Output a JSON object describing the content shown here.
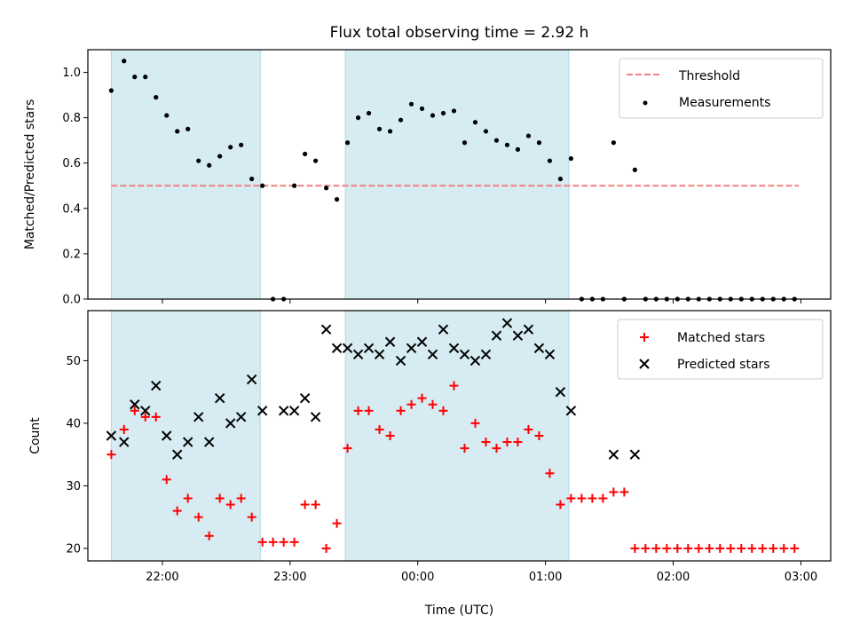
{
  "chart_data": [
    {
      "type": "scatter",
      "title": "Flux total observing time = 2.92 h",
      "ylabel": "Matched/Predicted stars",
      "xlabel": "",
      "xlim": [
        "21:35",
        "23:59+3:12"
      ],
      "ylim": [
        0,
        1.1
      ],
      "yticks": [
        0.0,
        0.2,
        0.4,
        0.6,
        0.8,
        1.0
      ],
      "ytick_labels": [
        "0.0",
        "0.2",
        "0.4",
        "0.6",
        "0.8",
        "1.0"
      ],
      "shaded_intervals": [
        [
          "21:36",
          "22:46"
        ],
        [
          "23:26",
          "01:11"
        ]
      ],
      "threshold": {
        "value": 0.5,
        "x_start": "21:36",
        "x_end": "02:59",
        "color": "#f08080"
      },
      "legend_position": "top-right",
      "legend": [
        "Threshold",
        "Measurements"
      ],
      "series": [
        {
          "name": "Measurements",
          "color": "#000000",
          "x": [
            "21:36",
            "21:42",
            "21:47",
            "21:52",
            "21:57",
            "22:02",
            "22:07",
            "22:12",
            "22:17",
            "22:22",
            "22:27",
            "22:32",
            "22:37",
            "22:42",
            "22:47",
            "22:52",
            "22:57",
            "23:02",
            "23:07",
            "23:12",
            "23:17",
            "23:22",
            "23:27",
            "23:32",
            "23:37",
            "23:42",
            "23:47",
            "23:52",
            "23:57",
            "00:02",
            "00:07",
            "00:12",
            "00:17",
            "00:22",
            "00:27",
            "00:32",
            "00:37",
            "00:42",
            "00:47",
            "00:52",
            "00:57",
            "01:02",
            "01:07",
            "01:12",
            "01:17",
            "01:22",
            "01:27",
            "01:32",
            "01:37",
            "01:42",
            "01:47",
            "01:52",
            "01:57",
            "02:02",
            "02:07",
            "02:12",
            "02:17",
            "02:22",
            "02:27",
            "02:32",
            "02:37",
            "02:42",
            "02:47",
            "02:52",
            "02:57"
          ],
          "values": [
            0.92,
            1.05,
            0.98,
            0.98,
            0.89,
            0.81,
            0.74,
            0.75,
            0.61,
            0.59,
            0.63,
            0.67,
            0.68,
            0.53,
            0.5,
            0.0,
            0.0,
            0.5,
            0.64,
            0.61,
            0.49,
            0.44,
            0.69,
            0.8,
            0.82,
            0.75,
            0.74,
            0.79,
            0.86,
            0.84,
            0.81,
            0.82,
            0.83,
            0.69,
            0.78,
            0.74,
            0.7,
            0.68,
            0.66,
            0.72,
            0.69,
            0.61,
            0.53,
            0.62,
            0.0,
            0.0,
            0.0,
            0.69,
            0.0,
            0.57,
            0.0,
            0.0,
            0.0,
            0.0,
            0.0,
            0.0,
            0.0,
            0.0,
            0.0,
            0.0,
            0.0,
            0.0,
            0.0,
            0.0,
            0.0
          ]
        }
      ]
    },
    {
      "type": "scatter",
      "title": "",
      "xlabel": "Time (UTC)",
      "ylabel": "Count",
      "ylim": [
        18,
        58
      ],
      "yticks": [
        20,
        30,
        40,
        50
      ],
      "ytick_labels": [
        "20",
        "30",
        "40",
        "50"
      ],
      "xtick_labels": [
        "22:00",
        "23:00",
        "00:00",
        "01:00",
        "02:00",
        "03:00"
      ],
      "shaded_intervals": [
        [
          "21:36",
          "22:46"
        ],
        [
          "23:26",
          "01:11"
        ]
      ],
      "legend_position": "top-right",
      "legend": [
        "Matched stars",
        "Predicted stars"
      ],
      "series": [
        {
          "name": "Matched stars",
          "color": "#ff0000",
          "marker": "plus",
          "x": [
            "21:36",
            "21:42",
            "21:47",
            "21:52",
            "21:57",
            "22:02",
            "22:07",
            "22:12",
            "22:17",
            "22:22",
            "22:27",
            "22:32",
            "22:37",
            "22:42",
            "22:47",
            "22:52",
            "22:57",
            "23:02",
            "23:07",
            "23:12",
            "23:17",
            "23:22",
            "23:27",
            "23:32",
            "23:37",
            "23:42",
            "23:47",
            "23:52",
            "23:57",
            "00:02",
            "00:07",
            "00:12",
            "00:17",
            "00:22",
            "00:27",
            "00:32",
            "00:37",
            "00:42",
            "00:47",
            "00:52",
            "00:57",
            "01:02",
            "01:07",
            "01:12",
            "01:17",
            "01:22",
            "01:27",
            "01:32",
            "01:37",
            "01:42",
            "01:47",
            "01:52",
            "01:57",
            "02:02",
            "02:07",
            "02:12",
            "02:17",
            "02:22",
            "02:27",
            "02:32",
            "02:37",
            "02:42",
            "02:47",
            "02:52",
            "02:57"
          ],
          "values": [
            35,
            39,
            42,
            41,
            41,
            31,
            26,
            28,
            25,
            22,
            28,
            27,
            28,
            25,
            21,
            21,
            21,
            21,
            27,
            27,
            20,
            24,
            36,
            42,
            42,
            39,
            38,
            42,
            43,
            44,
            43,
            42,
            46,
            36,
            40,
            37,
            36,
            37,
            37,
            39,
            38,
            32,
            27,
            28,
            28,
            28,
            28,
            29,
            29,
            20,
            20,
            20,
            20,
            20,
            20,
            20,
            20,
            20,
            20,
            20,
            20,
            20,
            20,
            20,
            20
          ]
        },
        {
          "name": "Predicted stars",
          "color": "#000000",
          "marker": "x",
          "x": [
            "21:36",
            "21:42",
            "21:47",
            "21:52",
            "21:57",
            "22:02",
            "22:07",
            "22:12",
            "22:17",
            "22:22",
            "22:27",
            "22:32",
            "22:37",
            "22:42",
            "22:47",
            "22:57",
            "23:02",
            "23:07",
            "23:12",
            "23:17",
            "23:22",
            "23:27",
            "23:32",
            "23:37",
            "23:42",
            "23:47",
            "23:52",
            "23:57",
            "00:02",
            "00:07",
            "00:12",
            "00:17",
            "00:22",
            "00:27",
            "00:32",
            "00:37",
            "00:42",
            "00:47",
            "00:52",
            "00:57",
            "01:02",
            "01:07",
            "01:12",
            "01:32",
            "01:42"
          ],
          "values": [
            38,
            37,
            43,
            42,
            46,
            38,
            35,
            37,
            41,
            37,
            44,
            40,
            41,
            47,
            42,
            42,
            42,
            44,
            41,
            55,
            52,
            52,
            51,
            52,
            51,
            53,
            50,
            52,
            53,
            51,
            55,
            52,
            51,
            50,
            51,
            54,
            56,
            54,
            55,
            52,
            51,
            45,
            42,
            35,
            35
          ]
        }
      ]
    }
  ]
}
